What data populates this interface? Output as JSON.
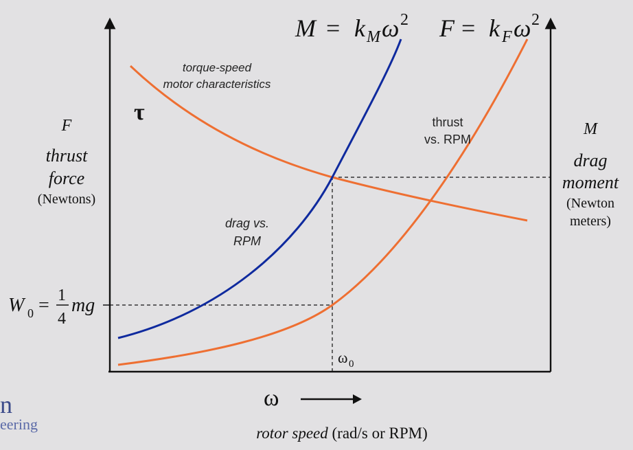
{
  "colors": {
    "background": "#e2e1e3",
    "axis": "#111111",
    "drag_curve": "#0f2a9e",
    "orange_curve": "#ee6f32",
    "logo": "#3b4a8a"
  },
  "icons": {
    "arrow": "right-arrow-icon"
  },
  "labels": {
    "drag_formula_lhs": "M",
    "drag_formula_eq": "=",
    "drag_formula_k": "k",
    "drag_formula_sub": "M",
    "drag_formula_omega": "ω",
    "drag_formula_exp": "2",
    "thrust_formula_lhs": "F",
    "thrust_formula_eq": "=",
    "thrust_formula_k": "k",
    "thrust_formula_sub": "F",
    "thrust_formula_omega": "ω",
    "thrust_formula_exp": "2",
    "torque_curve_line1": "torque-speed",
    "torque_curve_line2": "motor characteristics",
    "tau": "τ",
    "thrust_curve_line1": "thrust",
    "thrust_curve_line2": "vs. RPM",
    "drag_curve_line1": "drag vs.",
    "drag_curve_line2": "RPM",
    "left_axis_symbol": "F",
    "left_axis_line1": "thrust",
    "left_axis_line2": "force",
    "left_axis_units": "(Newtons)",
    "right_axis_symbol": "M",
    "right_axis_line1": "drag",
    "right_axis_line2": "moment",
    "right_axis_units_line1": "(Newton",
    "right_axis_units_line2": "meters)",
    "w0_lhs": "W",
    "w0_sub": "0",
    "w0_eq": "=",
    "w0_num": "1",
    "w0_den": "4",
    "w0_rhs": "mg",
    "omega0": "ω",
    "omega0_sub": "0",
    "x_omega": "ω",
    "x_label_italic": "rotor speed",
    "x_label_units": " (rad/s or RPM)",
    "logo_letter": "n",
    "logo_word": "eering"
  }
}
